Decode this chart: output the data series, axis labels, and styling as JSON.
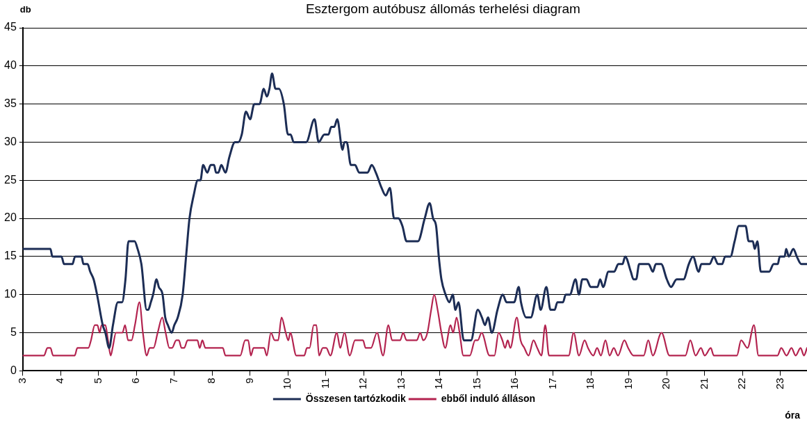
{
  "chart_data": {
    "type": "line",
    "title": "Esztergom autóbusz állomás terhelési diagram",
    "xlabel": "óra",
    "ylabel": "db",
    "xlim": [
      3,
      23.7
    ],
    "xticks": [
      3,
      4,
      5,
      6,
      7,
      8,
      9,
      10,
      11,
      12,
      13,
      14,
      15,
      16,
      17,
      18,
      19,
      20,
      21,
      22,
      23
    ],
    "ylim": [
      0,
      45
    ],
    "yticks": [
      0,
      5,
      10,
      15,
      20,
      25,
      30,
      35,
      40,
      45
    ],
    "grid": "y",
    "legend": "bottom",
    "marker": "none",
    "line_style": "solid",
    "series": [
      {
        "name": "Összesen tartózkodik",
        "color": "#1c2d55",
        "x": [
          3.0,
          3.73,
          3.78,
          4.02,
          4.09,
          4.31,
          4.38,
          4.55,
          4.6,
          4.71,
          4.78,
          4.87,
          4.96,
          5.11,
          5.18,
          5.28,
          5.38,
          5.51,
          5.62,
          5.71,
          5.79,
          5.95,
          6.03,
          6.13,
          6.27,
          6.31,
          6.38,
          6.44,
          6.53,
          6.59,
          6.69,
          6.76,
          6.83,
          6.93,
          7.0,
          7.09,
          7.22,
          7.31,
          7.4,
          7.51,
          7.62,
          7.69,
          7.76,
          7.87,
          7.96,
          8.05,
          8.1,
          8.16,
          8.24,
          8.35,
          8.45,
          8.6,
          8.69,
          8.78,
          8.89,
          9.0,
          9.11,
          9.25,
          9.36,
          9.44,
          9.51,
          9.58,
          9.67,
          9.76,
          9.89,
          10.0,
          10.07,
          10.15,
          10.48,
          10.7,
          10.81,
          10.96,
          11.07,
          11.14,
          11.22,
          11.3,
          11.44,
          11.49,
          11.55,
          11.66,
          11.77,
          11.88,
          12.1,
          12.21,
          12.32,
          12.47,
          12.58,
          12.69,
          12.8,
          12.91,
          13.02,
          13.13,
          13.43,
          13.61,
          13.74,
          13.83,
          13.91,
          13.98,
          14.05,
          14.16,
          14.26,
          14.35,
          14.42,
          14.5,
          14.64,
          14.83,
          15.01,
          15.12,
          15.2,
          15.28,
          15.38,
          15.53,
          15.67,
          15.77,
          15.86,
          15.97,
          16.09,
          16.15,
          16.29,
          16.41,
          16.58,
          16.67,
          16.82,
          16.93,
          17.04,
          17.11,
          17.26,
          17.33,
          17.44,
          17.59,
          17.68,
          17.77,
          17.88,
          17.99,
          18.17,
          18.24,
          18.32,
          18.46,
          18.61,
          18.72,
          18.83,
          18.9,
          19.05,
          19.12,
          19.19,
          19.27,
          19.52,
          19.63,
          19.71,
          19.85,
          20.0,
          20.11,
          20.26,
          20.44,
          20.58,
          20.69,
          20.84,
          20.91,
          21.13,
          21.24,
          21.35,
          21.46,
          21.54,
          21.68,
          21.79,
          21.9,
          22.08,
          22.16,
          22.27,
          22.32,
          22.39,
          22.48,
          22.7,
          22.82,
          22.93,
          22.98,
          23.11,
          23.15,
          23.22,
          23.34,
          23.43,
          23.55,
          23.7
        ],
        "values": [
          16,
          16,
          15,
          15,
          14,
          14,
          15,
          15,
          14,
          14,
          13,
          12,
          10,
          6,
          5,
          3,
          6,
          9,
          9,
          12,
          17,
          17,
          16,
          14,
          8,
          8,
          9,
          10,
          12,
          11,
          10,
          7,
          6,
          5,
          6,
          7,
          10,
          15,
          20,
          23,
          25,
          25,
          27,
          26,
          27,
          27,
          26,
          26,
          27,
          26,
          28,
          30,
          30,
          31,
          34,
          33,
          35,
          35,
          37,
          36,
          37,
          39,
          37,
          37,
          35,
          31,
          31,
          30,
          30,
          33,
          30,
          31,
          31,
          32,
          32,
          33,
          29,
          30,
          30,
          27,
          27,
          26,
          26,
          27,
          26,
          24,
          23,
          24,
          20,
          20,
          19,
          17,
          17,
          20,
          22,
          20,
          19,
          15,
          12,
          10,
          9,
          10,
          8,
          9,
          4,
          4,
          8,
          7,
          6,
          7,
          5,
          8,
          10,
          9,
          9,
          9,
          11,
          9,
          7,
          7,
          10,
          8,
          11,
          8,
          8,
          9,
          9,
          10,
          10,
          12,
          10,
          12,
          12,
          11,
          11,
          12,
          11,
          13,
          13,
          14,
          14,
          15,
          13,
          12,
          12,
          14,
          14,
          13,
          14,
          14,
          12,
          11,
          12,
          12,
          14,
          15,
          13,
          14,
          14,
          15,
          14,
          14,
          15,
          15,
          17,
          19,
          19,
          17,
          17,
          16,
          17,
          13,
          13,
          14,
          14,
          15,
          15,
          16,
          15,
          16,
          15,
          14,
          14
        ]
      },
      {
        "name": "ebből induló álláson",
        "color": "#b3234f",
        "x": [
          3.0,
          3.56,
          3.65,
          3.73,
          3.8,
          4.37,
          4.44,
          4.73,
          4.8,
          4.9,
          4.97,
          5.03,
          5.08,
          5.18,
          5.25,
          5.32,
          5.37,
          5.46,
          5.57,
          5.63,
          5.7,
          5.78,
          5.87,
          5.96,
          6.08,
          6.17,
          6.27,
          6.35,
          6.45,
          6.56,
          6.68,
          6.77,
          6.87,
          6.94,
          7.05,
          7.12,
          7.19,
          7.26,
          7.35,
          7.61,
          7.67,
          7.74,
          7.82,
          8.28,
          8.35,
          8.74,
          8.87,
          8.95,
          9.02,
          9.09,
          9.37,
          9.44,
          9.55,
          9.65,
          9.74,
          9.83,
          9.94,
          10.01,
          10.06,
          10.22,
          10.43,
          10.5,
          10.57,
          10.68,
          10.75,
          10.82,
          10.92,
          11.01,
          11.12,
          11.29,
          11.38,
          11.49,
          11.63,
          11.77,
          11.98,
          12.05,
          12.19,
          12.35,
          12.51,
          12.65,
          12.75,
          12.96,
          13.04,
          13.13,
          13.4,
          13.49,
          13.57,
          13.68,
          13.78,
          13.86,
          13.95,
          14.05,
          14.15,
          14.29,
          14.36,
          14.45,
          14.53,
          14.63,
          14.8,
          14.94,
          15.01,
          15.11,
          15.32,
          15.45,
          15.56,
          15.66,
          15.73,
          15.8,
          15.87,
          16.04,
          16.14,
          16.24,
          16.35,
          16.48,
          16.58,
          16.69,
          16.79,
          16.89,
          17.41,
          17.54,
          17.68,
          17.83,
          17.92,
          18.06,
          18.16,
          18.26,
          18.38,
          18.49,
          18.6,
          18.71,
          18.88,
          18.98,
          19.12,
          19.39,
          19.51,
          19.63,
          19.86,
          20.07,
          20.49,
          20.62,
          20.76,
          20.9,
          21.0,
          21.16,
          21.24,
          21.85,
          21.96,
          22.13,
          22.3,
          22.42,
          22.92,
          23.02,
          23.16,
          23.29,
          23.4,
          23.53,
          23.62,
          23.7
        ],
        "values": [
          2,
          2,
          3,
          3,
          2,
          2,
          3,
          3,
          4,
          6,
          6,
          5,
          6,
          6,
          4,
          2,
          3,
          5,
          5,
          5,
          6,
          4,
          4,
          6,
          9,
          5,
          2,
          3,
          3,
          5,
          7,
          5,
          3,
          3,
          4,
          4,
          3,
          3,
          4,
          4,
          3,
          4,
          3,
          3,
          2,
          2,
          4,
          4,
          2,
          3,
          3,
          2,
          5,
          4,
          4,
          7,
          5,
          4,
          5,
          2,
          2,
          3,
          3,
          6,
          6,
          2,
          3,
          3,
          2,
          5,
          3,
          5,
          2,
          4,
          4,
          3,
          3,
          5,
          2,
          6,
          4,
          4,
          5,
          4,
          4,
          5,
          4,
          5,
          8,
          10,
          8,
          5,
          3,
          6,
          5,
          7,
          5,
          2,
          2,
          4,
          4,
          5,
          2,
          2,
          5,
          4,
          3,
          4,
          3,
          7,
          4,
          3,
          2,
          4,
          3,
          2,
          6,
          2,
          2,
          5,
          2,
          4,
          3,
          2,
          3,
          2,
          4,
          2,
          3,
          2,
          4,
          3,
          2,
          2,
          4,
          2,
          5,
          2,
          2,
          4,
          2,
          3,
          2,
          3,
          2,
          2,
          4,
          3,
          6,
          2,
          2,
          3,
          2,
          3,
          2,
          3,
          2,
          3
        ]
      }
    ]
  }
}
